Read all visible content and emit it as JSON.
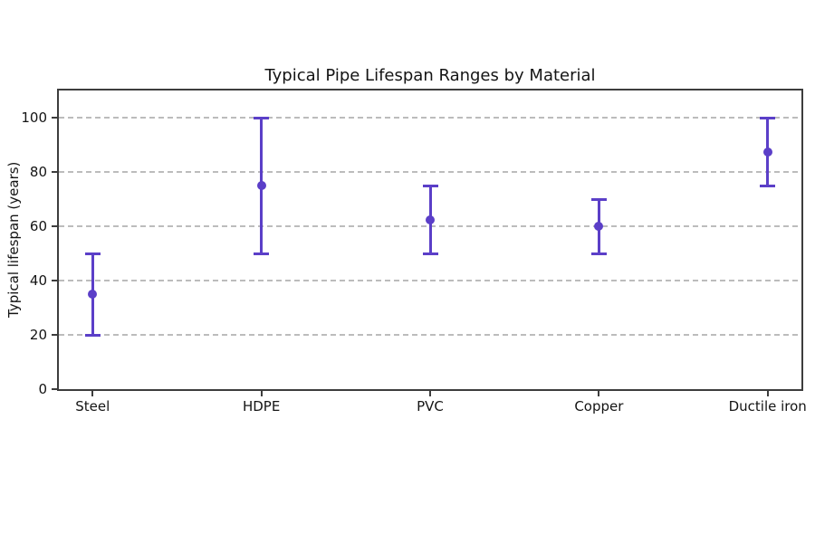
{
  "chart_data": {
    "type": "scatter",
    "subtype": "errorbar",
    "title": "Typical Pipe Lifespan Ranges by Material",
    "xlabel": "",
    "ylabel": "Typical lifespan (years)",
    "categories": [
      "Steel",
      "HDPE",
      "PVC",
      "Copper",
      "Ductile iron"
    ],
    "series": [
      {
        "name": "Typical lifespan range",
        "center": [
          35,
          75,
          62.5,
          60,
          87.5
        ],
        "low": [
          20,
          50,
          50,
          50,
          75
        ],
        "high": [
          50,
          100,
          75,
          70,
          100
        ]
      }
    ],
    "yticks": [
      0,
      20,
      40,
      60,
      80,
      100
    ],
    "ylim": [
      0,
      110
    ],
    "grid": {
      "axis": "y",
      "style": "dashed",
      "color": "#bcbcbc",
      "skip_zero": true
    },
    "legend": "none",
    "marker": "circle",
    "marker_color": "#5b3fc8",
    "background_color": "#ffffff",
    "spine_color": "#3d3d3d"
  }
}
